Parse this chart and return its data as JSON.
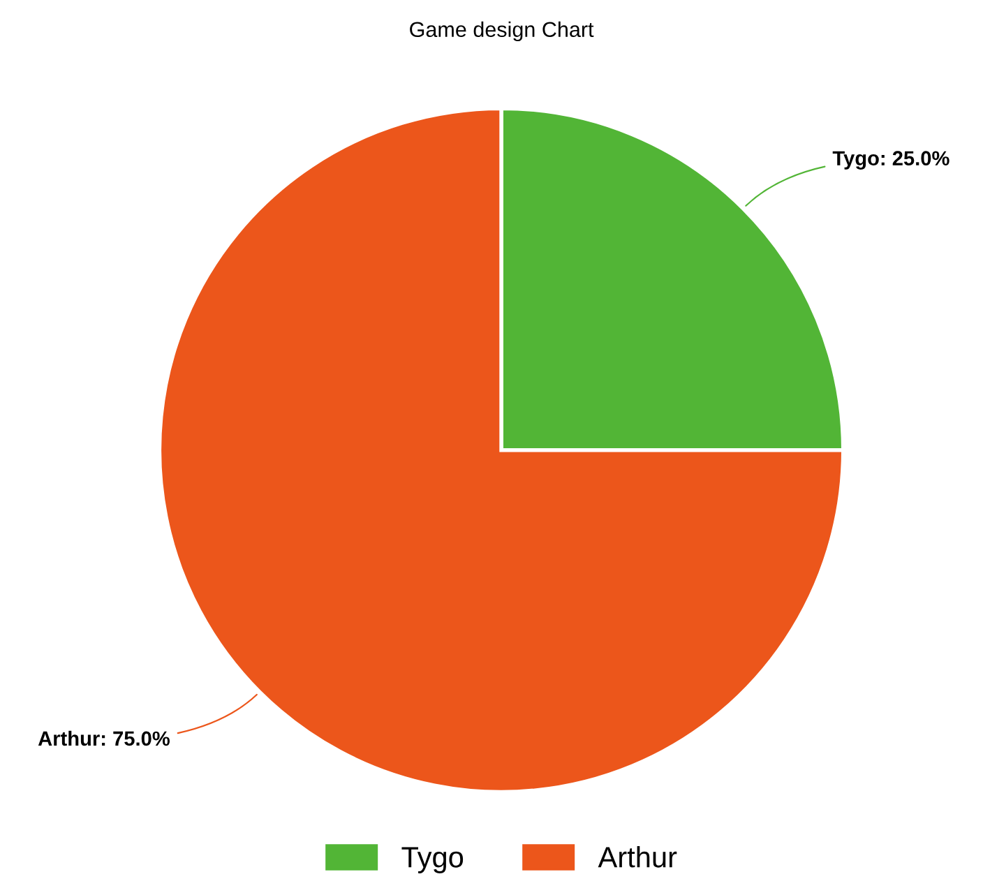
{
  "chart_data": {
    "type": "pie",
    "title": "Game design Chart",
    "categories": [
      "Tygo",
      "Arthur"
    ],
    "values": [
      25,
      75
    ],
    "colors": [
      "#52b536",
      "#ec561b"
    ],
    "value_labels": [
      "Tygo: 25.0%",
      "Arthur: 75.0%"
    ],
    "legend": "bottom"
  }
}
